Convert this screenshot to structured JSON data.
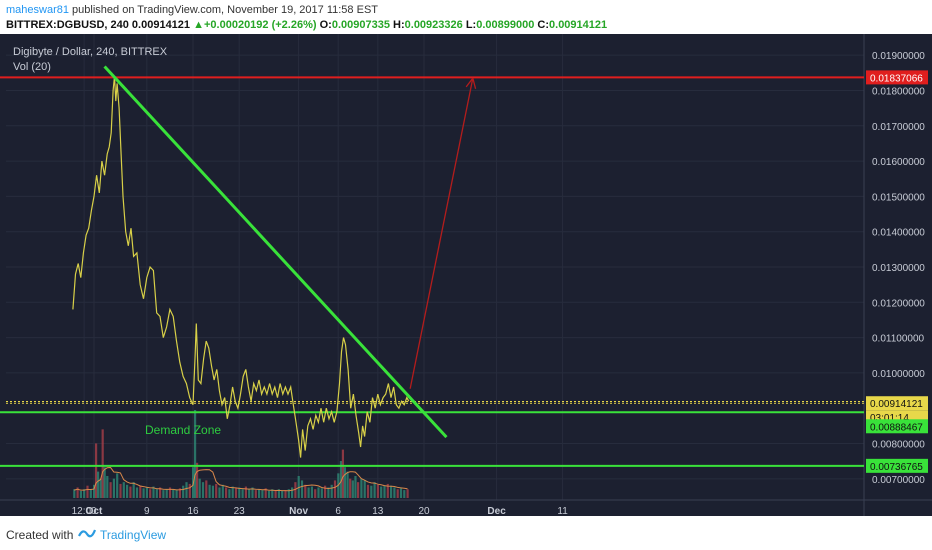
{
  "header": {
    "author": "maheswar81",
    "published_text": "published on TradingView.com, November 19, 2017 11:58 EST",
    "symbol": "BITTREX:DGBUSD, 240",
    "last": "0.00914121",
    "change": "+0.00020192 (+2.26%)",
    "o_label": "O:",
    "o": "0.00907335",
    "h_label": "H:",
    "h": "0.00923326",
    "l_label": "L:",
    "l": "0.00899000",
    "c_label": "C:",
    "c": "0.00914121"
  },
  "footer": {
    "created_with": "Created with",
    "brand": "TradingView"
  },
  "colors": {
    "background": "#1c2030",
    "price_line": "#d8d048",
    "trendline": "#39e23a",
    "resistance": "#e01e1e",
    "arrow": "#b41c1c",
    "axis_text": "#c8ccd6"
  },
  "chart_data": {
    "type": "line",
    "title": "Digibyte / Dollar, 240, BITTREX",
    "indicator": "Vol (20)",
    "xlabel": "",
    "ylabel": "",
    "ylim": [
      0.0064,
      0.0196
    ],
    "x_ticks": [
      "12:00",
      "Oct",
      "9",
      "16",
      "23",
      "Nov",
      "6",
      "13",
      "20",
      "Dec",
      "11"
    ],
    "y_ticks": [
      "0.01900000",
      "0.01800000",
      "0.01700000",
      "0.01600000",
      "0.01500000",
      "0.01400000",
      "0.01300000",
      "0.01200000",
      "0.01100000",
      "0.01000000",
      "0.00800000",
      "0.00700000"
    ],
    "y_tick_values": [
      0.019,
      0.018,
      0.017,
      0.016,
      0.015,
      0.014,
      0.013,
      0.012,
      0.011,
      0.01,
      0.008,
      0.007
    ],
    "x_tick_days": [
      -1.5,
      0,
      8,
      15,
      22,
      31,
      37,
      43,
      50,
      61,
      71
    ],
    "series": [
      {
        "points": [
          [
            -3.2,
            0.0118
          ],
          [
            -2.8,
            0.0128
          ],
          [
            -2.4,
            0.0131
          ],
          [
            -2,
            0.0127
          ],
          [
            -1.6,
            0.0134
          ],
          [
            -1.2,
            0.0139
          ],
          [
            -0.8,
            0.0141
          ],
          [
            -0.4,
            0.0146
          ],
          [
            0,
            0.015
          ],
          [
            0.4,
            0.0156
          ],
          [
            0.8,
            0.0151
          ],
          [
            1.2,
            0.016
          ],
          [
            1.6,
            0.0156
          ],
          [
            2,
            0.0162
          ],
          [
            2.3,
            0.0164
          ],
          [
            2.6,
            0.0168
          ],
          [
            2.9,
            0.018
          ],
          [
            3.1,
            0.0184
          ],
          [
            3.3,
            0.0177
          ],
          [
            3.5,
            0.0182
          ],
          [
            3.8,
            0.0175
          ],
          [
            4.1,
            0.0162
          ],
          [
            4.4,
            0.015
          ],
          [
            4.8,
            0.014
          ],
          [
            5.2,
            0.0136
          ],
          [
            5.6,
            0.0141
          ],
          [
            6,
            0.0133
          ],
          [
            6.5,
            0.0134
          ],
          [
            7,
            0.0125
          ],
          [
            7.5,
            0.0121
          ],
          [
            8,
            0.0127
          ],
          [
            8.5,
            0.013
          ],
          [
            9,
            0.0129
          ],
          [
            9.5,
            0.0117
          ],
          [
            10,
            0.0116
          ],
          [
            10.5,
            0.011
          ],
          [
            11,
            0.0113
          ],
          [
            11.5,
            0.0118
          ],
          [
            12,
            0.0116
          ],
          [
            12.5,
            0.0109
          ],
          [
            13,
            0.0103
          ],
          [
            13.5,
            0.0099
          ],
          [
            14,
            0.0097
          ],
          [
            14.5,
            0.0093
          ],
          [
            15,
            0.0091
          ],
          [
            15.3,
            0.0104
          ],
          [
            15.5,
            0.0114
          ],
          [
            15.8,
            0.0098
          ],
          [
            16.2,
            0.0097
          ],
          [
            16.6,
            0.0104
          ],
          [
            17,
            0.0109
          ],
          [
            17.4,
            0.0107
          ],
          [
            17.8,
            0.0102
          ],
          [
            18.2,
            0.0098
          ],
          [
            18.6,
            0.0101
          ],
          [
            19,
            0.0095
          ],
          [
            19.4,
            0.0091
          ],
          [
            19.8,
            0.0093
          ],
          [
            20.2,
            0.0087
          ],
          [
            20.6,
            0.0091
          ],
          [
            21,
            0.0096
          ],
          [
            21.4,
            0.0092
          ],
          [
            21.8,
            0.009
          ],
          [
            22.2,
            0.0094
          ],
          [
            22.6,
            0.0099
          ],
          [
            23,
            0.0101
          ],
          [
            23.4,
            0.0096
          ],
          [
            23.8,
            0.0092
          ],
          [
            24.2,
            0.0097
          ],
          [
            24.6,
            0.0095
          ],
          [
            25,
            0.0098
          ],
          [
            25.4,
            0.0094
          ],
          [
            25.8,
            0.0096
          ],
          [
            26.2,
            0.0094
          ],
          [
            26.6,
            0.0097
          ],
          [
            27,
            0.0094
          ],
          [
            27.4,
            0.0096
          ],
          [
            27.8,
            0.0093
          ],
          [
            28.2,
            0.0097
          ],
          [
            28.6,
            0.0094
          ],
          [
            29,
            0.0096
          ],
          [
            29.4,
            0.0094
          ],
          [
            29.8,
            0.0096
          ],
          [
            30.2,
            0.0091
          ],
          [
            30.6,
            0.0086
          ],
          [
            31,
            0.0081
          ],
          [
            31.3,
            0.0076
          ],
          [
            31.6,
            0.0084
          ],
          [
            32,
            0.0078
          ],
          [
            32.4,
            0.0085
          ],
          [
            32.8,
            0.0087
          ],
          [
            33.2,
            0.0084
          ],
          [
            33.6,
            0.0088
          ],
          [
            34,
            0.0086
          ],
          [
            34.4,
            0.009
          ],
          [
            34.8,
            0.0086
          ],
          [
            35.2,
            0.009
          ],
          [
            35.6,
            0.0087
          ],
          [
            36,
            0.0089
          ],
          [
            36.4,
            0.0086
          ],
          [
            36.8,
            0.0089
          ],
          [
            37.2,
            0.0097
          ],
          [
            37.5,
            0.0106
          ],
          [
            37.8,
            0.011
          ],
          [
            38.1,
            0.0108
          ],
          [
            38.5,
            0.0101
          ],
          [
            38.9,
            0.009
          ],
          [
            39.3,
            0.0094
          ],
          [
            39.7,
            0.0088
          ],
          [
            40.1,
            0.0083
          ],
          [
            40.4,
            0.0079
          ],
          [
            40.7,
            0.0085
          ],
          [
            41,
            0.0082
          ],
          [
            41.4,
            0.0089
          ],
          [
            41.8,
            0.0086
          ],
          [
            42.2,
            0.0093
          ],
          [
            42.6,
            0.009
          ],
          [
            43,
            0.0094
          ],
          [
            43.4,
            0.0091
          ],
          [
            43.8,
            0.0093
          ],
          [
            44.2,
            0.0094
          ],
          [
            44.6,
            0.0097
          ],
          [
            45,
            0.0093
          ],
          [
            45.4,
            0.0096
          ],
          [
            45.8,
            0.0091
          ],
          [
            46.2,
            0.009
          ],
          [
            46.6,
            0.0092
          ],
          [
            47,
            0.0091
          ],
          [
            47.4,
            0.0093
          ],
          [
            47.7,
            0.0092
          ]
        ]
      }
    ],
    "volume": [
      [
        -3,
        0.1
      ],
      [
        -2.5,
        0.12
      ],
      [
        -2,
        0.08
      ],
      [
        -1.5,
        0.1
      ],
      [
        -1,
        0.14
      ],
      [
        -0.5,
        0.1
      ],
      [
        0,
        0.15
      ],
      [
        0.3,
        0.62
      ],
      [
        0.6,
        0.3
      ],
      [
        1,
        0.22
      ],
      [
        1.3,
        0.78
      ],
      [
        1.6,
        0.35
      ],
      [
        2,
        0.25
      ],
      [
        2.5,
        0.18
      ],
      [
        3,
        0.22
      ],
      [
        3.5,
        0.28
      ],
      [
        4,
        0.16
      ],
      [
        4.5,
        0.18
      ],
      [
        5,
        0.15
      ],
      [
        5.5,
        0.13
      ],
      [
        6,
        0.18
      ],
      [
        6.5,
        0.12
      ],
      [
        7,
        0.14
      ],
      [
        7.5,
        0.11
      ],
      [
        8,
        0.12
      ],
      [
        8.5,
        0.1
      ],
      [
        9,
        0.13
      ],
      [
        9.5,
        0.1
      ],
      [
        10,
        0.12
      ],
      [
        10.5,
        0.09
      ],
      [
        11,
        0.1
      ],
      [
        11.5,
        0.12
      ],
      [
        12,
        0.1
      ],
      [
        12.5,
        0.09
      ],
      [
        13,
        0.11
      ],
      [
        13.5,
        0.14
      ],
      [
        14,
        0.18
      ],
      [
        14.5,
        0.16
      ],
      [
        15,
        0.35
      ],
      [
        15.3,
        1.0
      ],
      [
        15.6,
        0.4
      ],
      [
        16,
        0.22
      ],
      [
        16.5,
        0.18
      ],
      [
        17,
        0.2
      ],
      [
        17.5,
        0.15
      ],
      [
        18,
        0.14
      ],
      [
        18.5,
        0.16
      ],
      [
        19,
        0.12
      ],
      [
        19.5,
        0.15
      ],
      [
        20,
        0.12
      ],
      [
        20.5,
        0.1
      ],
      [
        21,
        0.13
      ],
      [
        21.5,
        0.11
      ],
      [
        22,
        0.12
      ],
      [
        22.5,
        0.1
      ],
      [
        23,
        0.13
      ],
      [
        23.5,
        0.1
      ],
      [
        24,
        0.12
      ],
      [
        24.5,
        0.09
      ],
      [
        25,
        0.1
      ],
      [
        25.5,
        0.09
      ],
      [
        26,
        0.11
      ],
      [
        26.5,
        0.08
      ],
      [
        27,
        0.1
      ],
      [
        27.5,
        0.09
      ],
      [
        28,
        0.1
      ],
      [
        28.5,
        0.08
      ],
      [
        29,
        0.09
      ],
      [
        29.5,
        0.1
      ],
      [
        30,
        0.12
      ],
      [
        30.5,
        0.18
      ],
      [
        31,
        0.25
      ],
      [
        31.5,
        0.2
      ],
      [
        32,
        0.15
      ],
      [
        32.5,
        0.12
      ],
      [
        33,
        0.13
      ],
      [
        33.5,
        0.1
      ],
      [
        34,
        0.12
      ],
      [
        34.5,
        0.11
      ],
      [
        35,
        0.14
      ],
      [
        35.5,
        0.12
      ],
      [
        36,
        0.15
      ],
      [
        36.5,
        0.2
      ],
      [
        37,
        0.28
      ],
      [
        37.4,
        0.42
      ],
      [
        37.7,
        0.55
      ],
      [
        38,
        0.35
      ],
      [
        38.4,
        0.3
      ],
      [
        38.8,
        0.22
      ],
      [
        39.2,
        0.2
      ],
      [
        39.6,
        0.25
      ],
      [
        40,
        0.18
      ],
      [
        40.5,
        0.22
      ],
      [
        41,
        0.2
      ],
      [
        41.5,
        0.15
      ],
      [
        42,
        0.14
      ],
      [
        42.5,
        0.18
      ],
      [
        43,
        0.15
      ],
      [
        43.5,
        0.13
      ],
      [
        44,
        0.14
      ],
      [
        44.5,
        0.16
      ],
      [
        45,
        0.14
      ],
      [
        45.5,
        0.12
      ],
      [
        46,
        0.1
      ],
      [
        46.5,
        0.11
      ],
      [
        47,
        0.09
      ],
      [
        47.5,
        0.1
      ]
    ],
    "horizontal_lines": [
      0.00919,
      0.00914121
    ],
    "annotations": {
      "demand_zone": "Demand Zone",
      "resistance_label": "0.01837066",
      "resistance_value": 0.01837066,
      "support_high_label": "0.00888467",
      "support_high_value": 0.00888467,
      "support_low_label": "0.00736765",
      "support_low_value": 0.00736765,
      "last_price_label": "0.00914121",
      "countdown_label": "03:01:14"
    },
    "trendline": [
      [
        1.6,
        0.01868
      ],
      [
        53.4,
        0.00818
      ]
    ],
    "arrow": [
      [
        47.9,
        0.00955
      ],
      [
        57.4,
        0.01835
      ]
    ],
    "grid": true
  }
}
